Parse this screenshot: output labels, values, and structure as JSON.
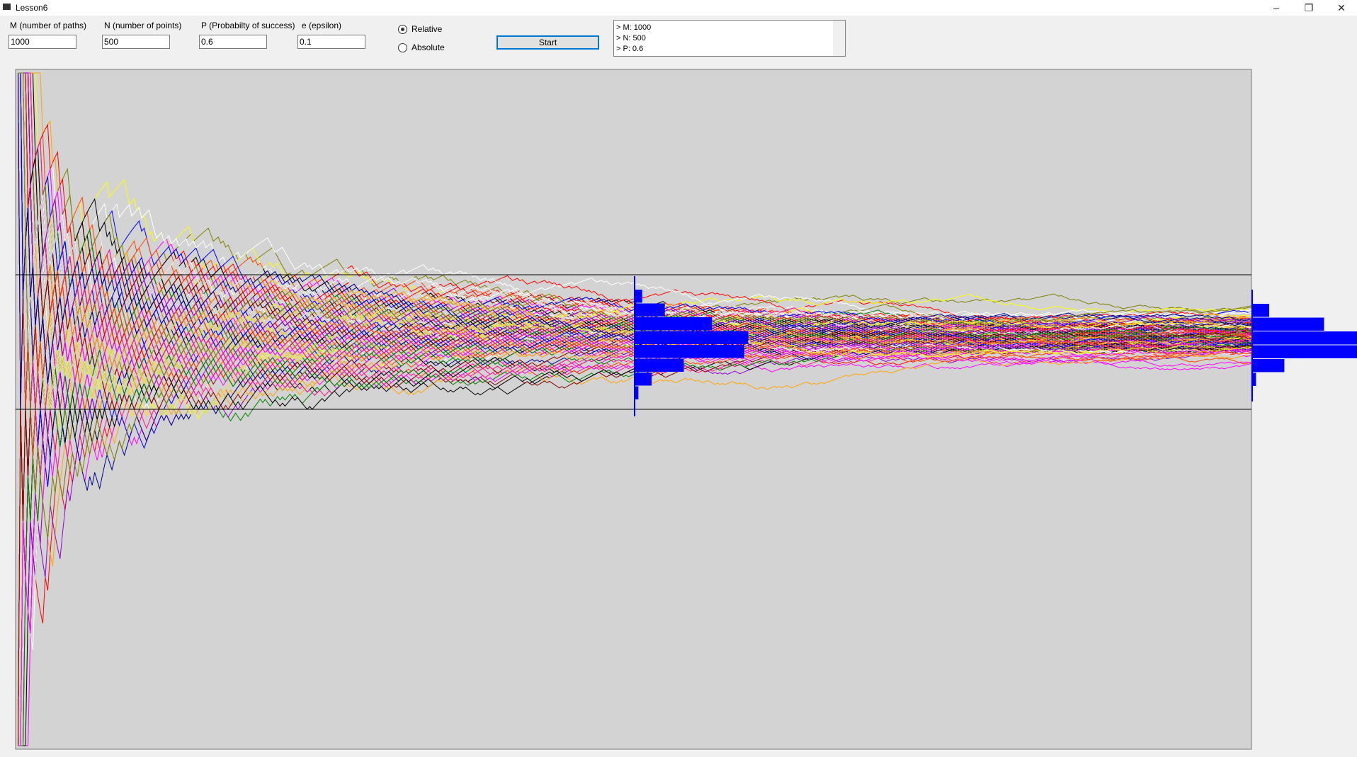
{
  "window": {
    "title": "Lesson6"
  },
  "form": {
    "fields": [
      {
        "label": "M (number of paths)",
        "value": "1000"
      },
      {
        "label": "N (number of points)",
        "value": "500"
      },
      {
        "label": "P (Probabilty of success)",
        "value": "0.6"
      },
      {
        "label": "e (epsilon)",
        "value": "0.1"
      }
    ],
    "radios": [
      {
        "label": "Relative",
        "checked": true
      },
      {
        "label": "Absolute",
        "checked": false
      }
    ],
    "button": "Start"
  },
  "log": {
    "lines": [
      "> M: 1000",
      "> N: 500",
      "> P: 0.6"
    ]
  },
  "plot": {
    "histograms": [
      {
        "values": [
          20,
          80,
          205,
          300,
          290,
          130,
          45,
          10
        ]
      },
      {
        "values": [
          45,
          190,
          330,
          320,
          85,
          10
        ]
      }
    ]
  }
}
